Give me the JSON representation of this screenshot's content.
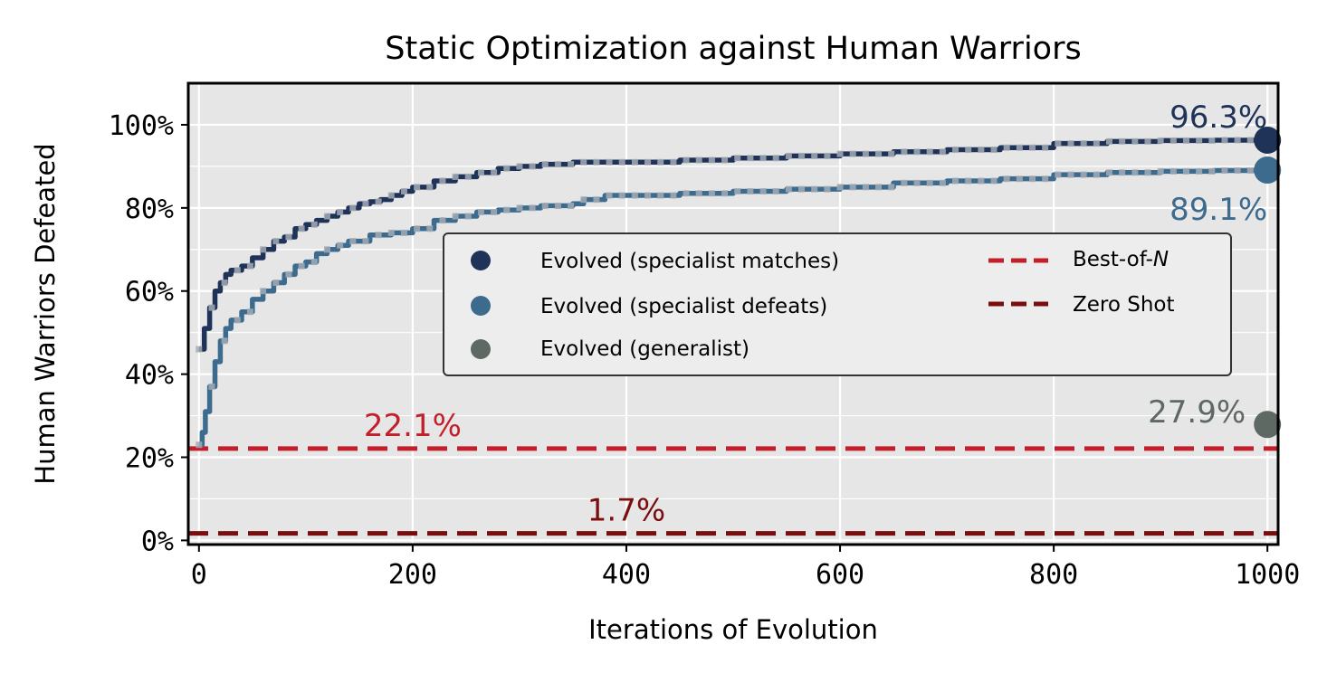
{
  "chart_data": {
    "type": "line",
    "title": "Static Optimization against Human Warriors",
    "xlabel": "Iterations of Evolution",
    "ylabel": "Human Warriors Defeated",
    "xlim": [
      -10,
      1010
    ],
    "ylim": [
      -1,
      110
    ],
    "xticks": [
      0,
      200,
      400,
      600,
      800,
      1000
    ],
    "xtick_labels": [
      "0",
      "200",
      "400",
      "600",
      "800",
      "1000"
    ],
    "yticks": [
      0,
      20,
      40,
      60,
      80,
      100
    ],
    "ytick_labels": [
      "0%",
      "20%",
      "40%",
      "60%",
      "80%",
      "100%"
    ],
    "grid": true,
    "series": [
      {
        "name": "Evolved (specialist matches)",
        "color": "#1f3358",
        "x": [
          0,
          5,
          10,
          15,
          20,
          25,
          30,
          40,
          50,
          60,
          70,
          80,
          90,
          100,
          110,
          120,
          130,
          140,
          150,
          160,
          170,
          180,
          190,
          200,
          220,
          240,
          260,
          280,
          300,
          320,
          350,
          400,
          450,
          500,
          550,
          600,
          650,
          700,
          750,
          800,
          850,
          900,
          950,
          1000
        ],
        "y": [
          46,
          51,
          56,
          60,
          62,
          64,
          65,
          66,
          68,
          70,
          72,
          73,
          75,
          76,
          77,
          78,
          79,
          80,
          81,
          81.5,
          82,
          83,
          84,
          85,
          86.5,
          87.5,
          88.5,
          89.5,
          90,
          90.5,
          91,
          91,
          91.5,
          92,
          92.5,
          93,
          93.5,
          94,
          94.5,
          95.5,
          96,
          96.2,
          96.3,
          96.3
        ]
      },
      {
        "name": "Evolved (specialist defeats)",
        "color": "#3d6b8e",
        "x": [
          0,
          3,
          6,
          10,
          15,
          20,
          25,
          30,
          40,
          50,
          60,
          70,
          80,
          90,
          100,
          110,
          120,
          130,
          140,
          160,
          180,
          200,
          220,
          240,
          260,
          280,
          300,
          320,
          350,
          360,
          380,
          400,
          450,
          500,
          550,
          600,
          650,
          700,
          750,
          800,
          850,
          900,
          950,
          1000
        ],
        "y": [
          23,
          26,
          31,
          37,
          43,
          48,
          51,
          53,
          55,
          58,
          60,
          62,
          64,
          66,
          67,
          69,
          70,
          71,
          72,
          73.5,
          74,
          75,
          77,
          78,
          79,
          79.5,
          80,
          80.5,
          81,
          82,
          83,
          83,
          83.5,
          84,
          84.5,
          85,
          86,
          86.5,
          87,
          88,
          88.5,
          88.8,
          89,
          89.1
        ]
      }
    ],
    "endpoints": [
      {
        "name": "Evolved (specialist matches)",
        "x": 1000,
        "y": 96.3,
        "label": "96.3%",
        "color": "#1f3358"
      },
      {
        "name": "Evolved (specialist defeats)",
        "x": 1000,
        "y": 89.1,
        "label": "89.1%",
        "color": "#3d6b8e"
      },
      {
        "name": "Evolved (generalist)",
        "x": 1000,
        "y": 27.9,
        "label": "27.9%",
        "color": "#5f6964"
      }
    ],
    "hlines": [
      {
        "name": "Best-of-N",
        "y": 22.1,
        "label": "22.1%",
        "label_x": 200,
        "color": "#c41e2a"
      },
      {
        "name": "Zero Shot",
        "y": 1.7,
        "label": "1.7%",
        "label_x": 400,
        "color": "#7a0e0e"
      }
    ],
    "legend": {
      "position": "center-right",
      "entries": [
        {
          "label": "Evolved (specialist matches)",
          "marker": "dot",
          "color": "#1f3358"
        },
        {
          "label": "Evolved (specialist defeats)",
          "marker": "dot",
          "color": "#3d6b8e"
        },
        {
          "label": "Evolved (generalist)",
          "marker": "dot",
          "color": "#5f6964"
        },
        {
          "label_prefix": "Best-of-",
          "label_italic": "N",
          "marker": "dash",
          "color": "#c41e2a"
        },
        {
          "label": "Zero Shot",
          "marker": "dash",
          "color": "#7a0e0e"
        }
      ]
    }
  }
}
